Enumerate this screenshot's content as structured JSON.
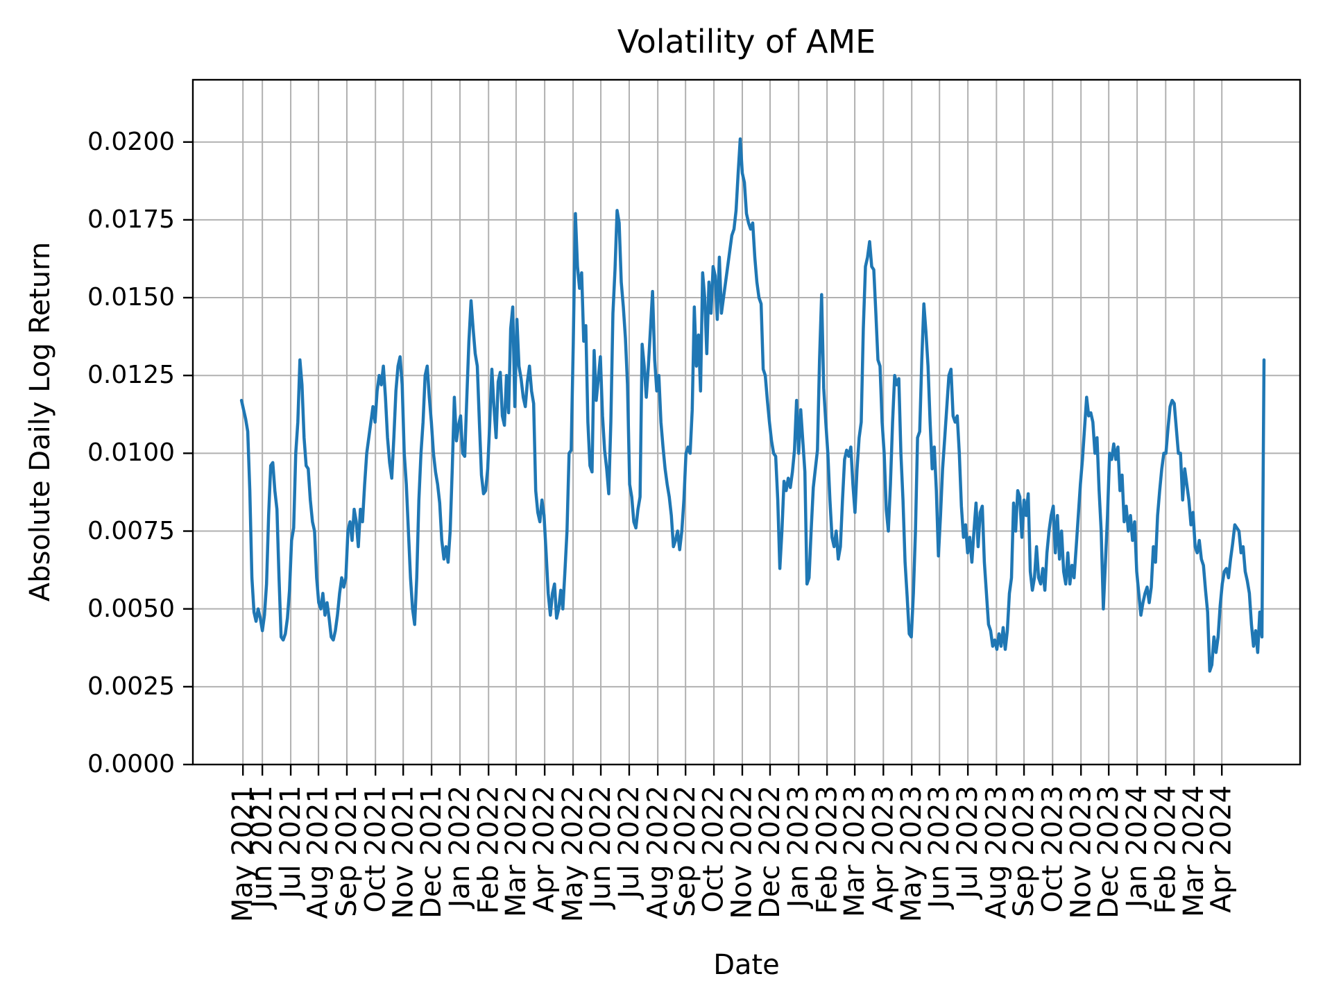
{
  "chart_data": {
    "type": "line",
    "title": "Volatility of AME",
    "xlabel": "Date",
    "ylabel": "Absolute Daily Log Return",
    "line_color": "#1f77b4",
    "grid": true,
    "grid_color": "#b0b0b0",
    "background_color": "#ffffff",
    "ylim": [
      0.0,
      0.022
    ],
    "y_ticks": [
      0.0,
      0.0025,
      0.005,
      0.0075,
      0.01,
      0.0125,
      0.015,
      0.0175,
      0.02
    ],
    "y_tick_labels": [
      "0.0000",
      "0.0025",
      "0.0050",
      "0.0075",
      "0.0100",
      "0.0125",
      "0.0150",
      "0.0175",
      "0.0200"
    ],
    "x_tick_labels": [
      "May 2021",
      "Jun 2021",
      "Jul 2021",
      "Aug 2021",
      "Sep 2021",
      "Oct 2021",
      "Nov 2021",
      "Dec 2021",
      "Jan 2022",
      "Feb 2022",
      "Mar 2022",
      "Apr 2022",
      "May 2022",
      "Jun 2022",
      "Jul 2022",
      "Aug 2022",
      "Sep 2022",
      "Oct 2022",
      "Nov 2022",
      "Dec 2022",
      "Jan 2023",
      "Feb 2023",
      "Mar 2023",
      "Apr 2023",
      "May 2023",
      "Jun 2023",
      "Jul 2023",
      "Aug 2023",
      "Sep 2023",
      "Oct 2023",
      "Nov 2023",
      "Dec 2023",
      "Jan 2024",
      "Feb 2024",
      "Mar 2024",
      "Apr 2024"
    ],
    "x_tick_indices": [
      0.7,
      10,
      23.6,
      36.9,
      50.5,
      64.2,
      77.5,
      91.1,
      104.7,
      118.4,
      131.6,
      145.3,
      158.9,
      172.2,
      185.8,
      199.5,
      212.8,
      226.4,
      240,
      253.3,
      267,
      280.6,
      293.9,
      307.6,
      321.2,
      334.5,
      348.1,
      361.8,
      375,
      388.7,
      402.3,
      415.6,
      429.2,
      442.9,
      456.5,
      469.8
    ],
    "xlim_indices": [
      -23.3,
      507.3
    ],
    "values": [
      0.0117,
      0.0114,
      0.0111,
      0.0107,
      0.0088,
      0.006,
      0.0049,
      0.0046,
      0.005,
      0.0047,
      0.0043,
      0.0048,
      0.0058,
      0.008,
      0.0096,
      0.0097,
      0.0088,
      0.0082,
      0.006,
      0.0041,
      0.004,
      0.0042,
      0.0047,
      0.0056,
      0.0072,
      0.0076,
      0.01,
      0.011,
      0.013,
      0.0122,
      0.0105,
      0.0096,
      0.0095,
      0.0085,
      0.0078,
      0.0075,
      0.006,
      0.0052,
      0.005,
      0.0055,
      0.0048,
      0.0052,
      0.0047,
      0.0041,
      0.004,
      0.0043,
      0.0048,
      0.0055,
      0.006,
      0.0057,
      0.006,
      0.0075,
      0.0078,
      0.0072,
      0.0082,
      0.0078,
      0.007,
      0.0082,
      0.0078,
      0.009,
      0.01,
      0.0105,
      0.011,
      0.0115,
      0.011,
      0.012,
      0.0125,
      0.0122,
      0.0128,
      0.0118,
      0.0105,
      0.0097,
      0.0092,
      0.0105,
      0.012,
      0.0128,
      0.0131,
      0.0122,
      0.01,
      0.009,
      0.0075,
      0.006,
      0.005,
      0.0045,
      0.006,
      0.0085,
      0.01,
      0.011,
      0.0125,
      0.0128,
      0.0118,
      0.011,
      0.01,
      0.0094,
      0.009,
      0.0084,
      0.0072,
      0.0066,
      0.007,
      0.0065,
      0.0075,
      0.0095,
      0.0118,
      0.0104,
      0.0109,
      0.0112,
      0.01,
      0.0099,
      0.0118,
      0.0136,
      0.0149,
      0.014,
      0.0132,
      0.0128,
      0.011,
      0.0093,
      0.0087,
      0.0088,
      0.0095,
      0.011,
      0.0127,
      0.0115,
      0.0105,
      0.0123,
      0.0126,
      0.0112,
      0.0109,
      0.0125,
      0.0113,
      0.014,
      0.0147,
      0.0115,
      0.0143,
      0.0128,
      0.0124,
      0.0118,
      0.0115,
      0.0123,
      0.0128,
      0.012,
      0.0116,
      0.0088,
      0.0081,
      0.0078,
      0.0085,
      0.008,
      0.0068,
      0.0055,
      0.0048,
      0.0055,
      0.0058,
      0.0047,
      0.005,
      0.0056,
      0.005,
      0.0062,
      0.0075,
      0.01,
      0.0101,
      0.0135,
      0.0177,
      0.016,
      0.0153,
      0.0158,
      0.0136,
      0.0141,
      0.011,
      0.0096,
      0.0094,
      0.0133,
      0.0117,
      0.0124,
      0.0131,
      0.0112,
      0.0101,
      0.0095,
      0.0087,
      0.011,
      0.0145,
      0.0159,
      0.0178,
      0.0174,
      0.0155,
      0.0147,
      0.0137,
      0.0122,
      0.009,
      0.0086,
      0.0078,
      0.0076,
      0.0082,
      0.0086,
      0.0135,
      0.0128,
      0.0118,
      0.0128,
      0.014,
      0.0152,
      0.013,
      0.012,
      0.0125,
      0.011,
      0.0102,
      0.0095,
      0.009,
      0.0086,
      0.008,
      0.007,
      0.0072,
      0.0075,
      0.0069,
      0.0075,
      0.0085,
      0.01,
      0.0102,
      0.01,
      0.0114,
      0.0147,
      0.0128,
      0.0138,
      0.012,
      0.0158,
      0.015,
      0.0132,
      0.0155,
      0.0145,
      0.016,
      0.0157,
      0.0143,
      0.0163,
      0.0145,
      0.015,
      0.0155,
      0.016,
      0.0165,
      0.017,
      0.0172,
      0.0178,
      0.019,
      0.0201,
      0.019,
      0.0187,
      0.0177,
      0.0174,
      0.0172,
      0.0174,
      0.0163,
      0.0155,
      0.015,
      0.0148,
      0.0127,
      0.0125,
      0.0117,
      0.011,
      0.0104,
      0.01,
      0.0099,
      0.0085,
      0.0063,
      0.0075,
      0.0091,
      0.0088,
      0.0092,
      0.0089,
      0.0094,
      0.0101,
      0.0117,
      0.01,
      0.0114,
      0.0104,
      0.0094,
      0.0058,
      0.006,
      0.0075,
      0.0089,
      0.0095,
      0.0101,
      0.013,
      0.0151,
      0.0121,
      0.011,
      0.01,
      0.0085,
      0.0073,
      0.007,
      0.0075,
      0.0066,
      0.007,
      0.0085,
      0.0098,
      0.0101,
      0.0099,
      0.0102,
      0.009,
      0.0081,
      0.0095,
      0.0105,
      0.011,
      0.014,
      0.016,
      0.0163,
      0.0168,
      0.016,
      0.0159,
      0.0145,
      0.013,
      0.0128,
      0.011,
      0.01,
      0.0082,
      0.0075,
      0.009,
      0.011,
      0.0125,
      0.0122,
      0.0124,
      0.01,
      0.0085,
      0.0065,
      0.0054,
      0.0042,
      0.0041,
      0.0055,
      0.0075,
      0.0105,
      0.0107,
      0.013,
      0.0148,
      0.0139,
      0.0128,
      0.011,
      0.0095,
      0.0102,
      0.0088,
      0.0067,
      0.008,
      0.0095,
      0.0105,
      0.0115,
      0.0125,
      0.0127,
      0.0112,
      0.011,
      0.0112,
      0.01,
      0.0083,
      0.0073,
      0.0077,
      0.0068,
      0.0073,
      0.0065,
      0.0075,
      0.0084,
      0.007,
      0.0081,
      0.0083,
      0.0065,
      0.0055,
      0.0045,
      0.0043,
      0.0038,
      0.004,
      0.0037,
      0.0042,
      0.0038,
      0.0044,
      0.0037,
      0.0043,
      0.0055,
      0.006,
      0.0084,
      0.0075,
      0.0088,
      0.0086,
      0.0073,
      0.0085,
      0.008,
      0.0087,
      0.0062,
      0.0056,
      0.006,
      0.007,
      0.006,
      0.0058,
      0.0063,
      0.0056,
      0.0068,
      0.0075,
      0.008,
      0.0083,
      0.0068,
      0.008,
      0.0066,
      0.0075,
      0.0062,
      0.0058,
      0.0068,
      0.0058,
      0.0064,
      0.006,
      0.007,
      0.008,
      0.009,
      0.0098,
      0.0108,
      0.0118,
      0.0112,
      0.0113,
      0.011,
      0.01,
      0.0105,
      0.0088,
      0.0075,
      0.005,
      0.0065,
      0.008,
      0.01,
      0.0098,
      0.0103,
      0.0098,
      0.0102,
      0.0088,
      0.0093,
      0.0078,
      0.0083,
      0.0075,
      0.008,
      0.0072,
      0.0078,
      0.0062,
      0.0055,
      0.0048,
      0.0052,
      0.0055,
      0.0057,
      0.0052,
      0.0057,
      0.007,
      0.0065,
      0.008,
      0.0088,
      0.0095,
      0.01,
      0.01,
      0.0108,
      0.0115,
      0.0117,
      0.0116,
      0.0108,
      0.01,
      0.01,
      0.0085,
      0.0095,
      0.009,
      0.0085,
      0.0077,
      0.0081,
      0.007,
      0.0068,
      0.0072,
      0.0066,
      0.0064,
      0.0056,
      0.0049,
      0.003,
      0.0032,
      0.0041,
      0.0036,
      0.0041,
      0.0051,
      0.0058,
      0.0062,
      0.0063,
      0.006,
      0.0066,
      0.0071,
      0.0077,
      0.0076,
      0.0075,
      0.0068,
      0.007,
      0.0062,
      0.0059,
      0.0055,
      0.0045,
      0.0038,
      0.0043,
      0.0036,
      0.0049,
      0.0041,
      0.013
    ]
  }
}
